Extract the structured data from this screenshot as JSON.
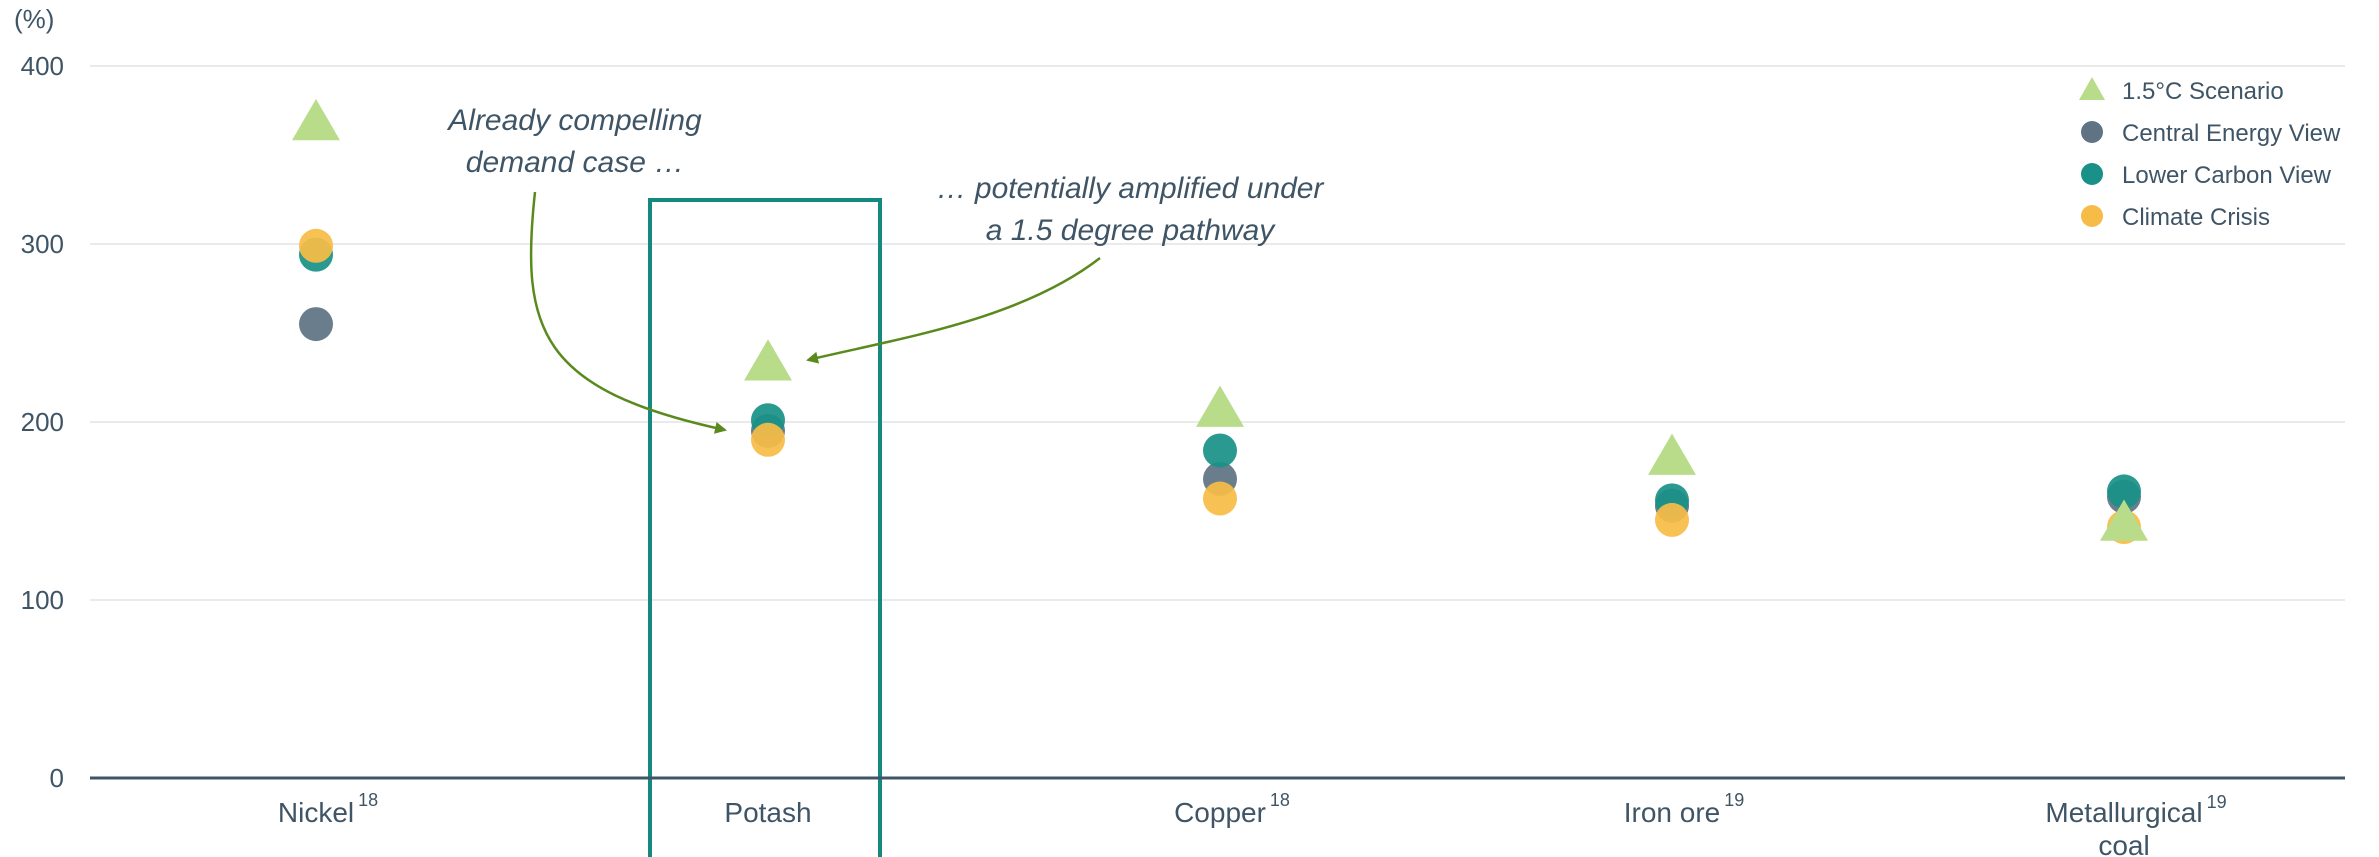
{
  "chart_data": {
    "type": "scatter",
    "ylabel": "(%)",
    "ylim": [
      0,
      400
    ],
    "yticks": [
      0,
      100,
      200,
      300,
      400
    ],
    "grid": true,
    "legend_position": "top-right",
    "categories": [
      {
        "label": "Nickel",
        "sup": "18"
      },
      {
        "label": "Potash",
        "sup": ""
      },
      {
        "label": "Copper",
        "sup": "18"
      },
      {
        "label": "Iron ore",
        "sup": "19"
      },
      {
        "label": "Metallurgical coal",
        "line1": "Metallurgical",
        "line2": "coal",
        "sup": "19"
      }
    ],
    "series": [
      {
        "name": "1.5°C Scenario",
        "marker": "triangle",
        "color": "#b8dc8a",
        "values": [
          368,
          233,
          207,
          180,
          143
        ]
      },
      {
        "name": "Central Energy View",
        "marker": "circle",
        "color": "#5f7384",
        "values": [
          255,
          195,
          168,
          153,
          158
        ]
      },
      {
        "name": "Lower Carbon View",
        "marker": "circle",
        "color": "#1a9188",
        "values": [
          294,
          201,
          184,
          156,
          161
        ]
      },
      {
        "name": "Climate Crisis",
        "marker": "circle",
        "color": "#f6bc47",
        "values": [
          299,
          190,
          157,
          145,
          141
        ]
      }
    ],
    "highlight_category": "Potash",
    "highlight_color": "#13897f",
    "annotations": [
      {
        "id": "annot-1",
        "line1": "Already compelling",
        "line2": "demand case …"
      },
      {
        "id": "annot-2",
        "line1": "… potentially amplified under",
        "line2": "a 1.5 degree pathway"
      }
    ],
    "arrow_color": "#5a8a1e",
    "axis_color": "#3f5566",
    "grid_color": "#e3e3e3"
  }
}
